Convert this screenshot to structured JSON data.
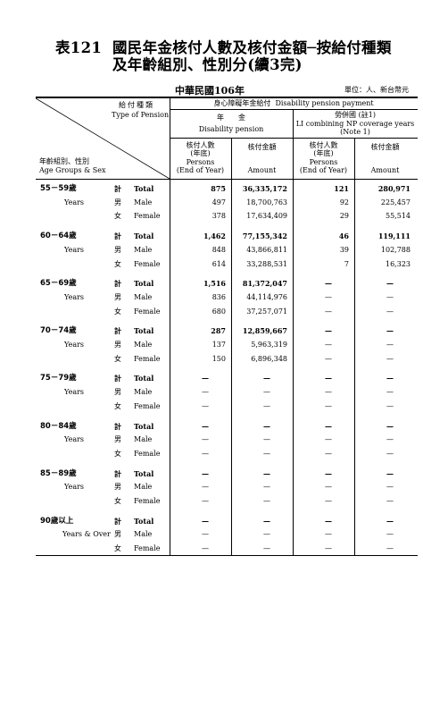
{
  "title": {
    "number": "表121",
    "line1": "國民年金核付人數及核付金額─按給付種類",
    "line2": "及年齡組別、性別分(續3完)"
  },
  "year": "中華民國106年",
  "unit": "單位：人、新台幣元",
  "header": {
    "pension_type_zh": "給付種類",
    "pension_type_en": "Type of Pension",
    "age_sex_zh": "年齡組別、性別",
    "age_sex_en": "Age Groups & Sex",
    "disability_zh": "身心障礙年金給付",
    "disability_en": "Disability pension payment",
    "annuity_zh": "年　　金",
    "annuity_en": "Disability pension",
    "li_zh": "勞併國 (註1)",
    "li_en1": "LI combining NP coverage years",
    "li_en2": "(Note 1)",
    "persons_zh1": "核付人數",
    "persons_zh2": "(年底)",
    "persons_en1": "Persons",
    "persons_en2": "(End of Year)",
    "amount_zh": "核付金額",
    "amount_en": "Amount"
  },
  "groups": [
    {
      "age": "55－59歲",
      "sub": "Years",
      "rows": [
        {
          "zh": "計",
          "en": "Total",
          "v": [
            "875",
            "36,335,172",
            "121",
            "280,971"
          ]
        },
        {
          "zh": "男",
          "en": "Male",
          "v": [
            "497",
            "18,700,763",
            "92",
            "225,457"
          ]
        },
        {
          "zh": "女",
          "en": "Female",
          "v": [
            "378",
            "17,634,409",
            "29",
            "55,514"
          ]
        }
      ]
    },
    {
      "age": "60－64歲",
      "sub": "Years",
      "rows": [
        {
          "zh": "計",
          "en": "Total",
          "v": [
            "1,462",
            "77,155,342",
            "46",
            "119,111"
          ]
        },
        {
          "zh": "男",
          "en": "Male",
          "v": [
            "848",
            "43,866,811",
            "39",
            "102,788"
          ]
        },
        {
          "zh": "女",
          "en": "Female",
          "v": [
            "614",
            "33,288,531",
            "7",
            "16,323"
          ]
        }
      ]
    },
    {
      "age": "65－69歲",
      "sub": "Years",
      "rows": [
        {
          "zh": "計",
          "en": "Total",
          "v": [
            "1,516",
            "81,372,047",
            "—",
            "—"
          ]
        },
        {
          "zh": "男",
          "en": "Male",
          "v": [
            "836",
            "44,114,976",
            "—",
            "—"
          ]
        },
        {
          "zh": "女",
          "en": "Female",
          "v": [
            "680",
            "37,257,071",
            "—",
            "—"
          ]
        }
      ]
    },
    {
      "age": "70－74歲",
      "sub": "Years",
      "rows": [
        {
          "zh": "計",
          "en": "Total",
          "v": [
            "287",
            "12,859,667",
            "—",
            "—"
          ]
        },
        {
          "zh": "男",
          "en": "Male",
          "v": [
            "137",
            "5,963,319",
            "—",
            "—"
          ]
        },
        {
          "zh": "女",
          "en": "Female",
          "v": [
            "150",
            "6,896,348",
            "—",
            "—"
          ]
        }
      ]
    },
    {
      "age": "75－79歲",
      "sub": "Years",
      "rows": [
        {
          "zh": "計",
          "en": "Total",
          "v": [
            "—",
            "—",
            "—",
            "—"
          ]
        },
        {
          "zh": "男",
          "en": "Male",
          "v": [
            "—",
            "—",
            "—",
            "—"
          ]
        },
        {
          "zh": "女",
          "en": "Female",
          "v": [
            "—",
            "—",
            "—",
            "—"
          ]
        }
      ]
    },
    {
      "age": "80－84歲",
      "sub": "Years",
      "rows": [
        {
          "zh": "計",
          "en": "Total",
          "v": [
            "—",
            "—",
            "—",
            "—"
          ]
        },
        {
          "zh": "男",
          "en": "Male",
          "v": [
            "—",
            "—",
            "—",
            "—"
          ]
        },
        {
          "zh": "女",
          "en": "Female",
          "v": [
            "—",
            "—",
            "—",
            "—"
          ]
        }
      ]
    },
    {
      "age": "85－89歲",
      "sub": "Years",
      "rows": [
        {
          "zh": "計",
          "en": "Total",
          "v": [
            "—",
            "—",
            "—",
            "—"
          ]
        },
        {
          "zh": "男",
          "en": "Male",
          "v": [
            "—",
            "—",
            "—",
            "—"
          ]
        },
        {
          "zh": "女",
          "en": "Female",
          "v": [
            "—",
            "—",
            "—",
            "—"
          ]
        }
      ]
    },
    {
      "age": "90歲以上",
      "sub": "Years & Over",
      "rows": [
        {
          "zh": "計",
          "en": "Total",
          "v": [
            "—",
            "—",
            "—",
            "—"
          ]
        },
        {
          "zh": "男",
          "en": "Male",
          "v": [
            "—",
            "—",
            "—",
            "—"
          ]
        },
        {
          "zh": "女",
          "en": "Female",
          "v": [
            "—",
            "—",
            "—",
            "—"
          ]
        }
      ]
    }
  ]
}
